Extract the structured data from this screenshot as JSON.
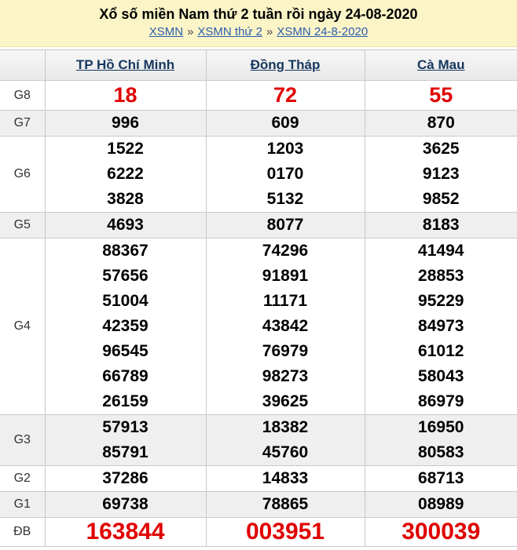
{
  "page": {
    "title": "Xổ số miền Nam thứ 2 tuần rồi ngày 24-08-2020",
    "breadcrumb": {
      "separator": "»",
      "links": [
        "XSMN",
        "XSMN thứ 2",
        "XSMN 24-8-2020"
      ]
    }
  },
  "colors": {
    "banner_bg": "#fbf4c7",
    "link_blue": "#2b5dad",
    "header_text": "#17375e",
    "highlight_red": "#e00000",
    "stripe_gray": "#efefef",
    "border_gray": "#c9c9c9"
  },
  "table": {
    "columns": [
      "TP Hồ Chí Minh",
      "Đồng Tháp",
      "Cà Mau"
    ],
    "rows": [
      {
        "label": "G8",
        "style": "red-large",
        "values": [
          [
            "18"
          ],
          [
            "72"
          ],
          [
            "55"
          ]
        ]
      },
      {
        "label": "G7",
        "values": [
          [
            "996"
          ],
          [
            "609"
          ],
          [
            "870"
          ]
        ]
      },
      {
        "label": "G6",
        "values": [
          [
            "1522",
            "6222",
            "3828"
          ],
          [
            "1203",
            "0170",
            "5132"
          ],
          [
            "3625",
            "9123",
            "9852"
          ]
        ]
      },
      {
        "label": "G5",
        "values": [
          [
            "4693"
          ],
          [
            "8077"
          ],
          [
            "8183"
          ]
        ]
      },
      {
        "label": "G4",
        "values": [
          [
            "88367",
            "57656",
            "51004",
            "42359",
            "96545",
            "66789",
            "26159"
          ],
          [
            "74296",
            "91891",
            "11171",
            "43842",
            "76979",
            "98273",
            "39625"
          ],
          [
            "41494",
            "28853",
            "95229",
            "84973",
            "61012",
            "58043",
            "86979"
          ]
        ]
      },
      {
        "label": "G3",
        "values": [
          [
            "57913",
            "85791"
          ],
          [
            "18382",
            "45760"
          ],
          [
            "16950",
            "80583"
          ]
        ]
      },
      {
        "label": "G2",
        "values": [
          [
            "37286"
          ],
          [
            "14833"
          ],
          [
            "68713"
          ]
        ]
      },
      {
        "label": "G1",
        "values": [
          [
            "69738"
          ],
          [
            "78865"
          ],
          [
            "08989"
          ]
        ]
      },
      {
        "label": "ĐB",
        "style": "red-xlarge",
        "values": [
          [
            "163844"
          ],
          [
            "003951"
          ],
          [
            "300039"
          ]
        ]
      }
    ]
  }
}
